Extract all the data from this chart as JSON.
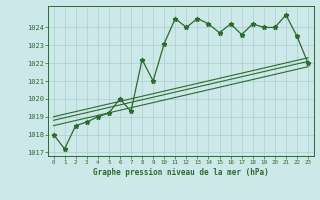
{
  "title": "Graphe pression niveau de la mer (hPa)",
  "background_color": "#cce8e8",
  "line_color": "#2d6a2d",
  "grid_color": "#aacfcf",
  "pressure_data": [
    1018.0,
    1017.2,
    1018.5,
    1018.7,
    1019.0,
    1019.2,
    1020.0,
    1019.3,
    1022.2,
    1021.0,
    1023.1,
    1024.5,
    1024.0,
    1024.5,
    1024.2,
    1023.7,
    1024.2,
    1023.6,
    1024.2,
    1024.0,
    1024.0,
    1024.7,
    1023.5,
    1022.0
  ],
  "trend_lines": [
    [
      1018.5,
      1021.8
    ],
    [
      1018.8,
      1022.1
    ],
    [
      1019.0,
      1022.3
    ]
  ],
  "ylim": [
    1016.8,
    1025.2
  ],
  "xlim": [
    -0.5,
    23.5
  ],
  "yticks": [
    1017,
    1018,
    1019,
    1020,
    1021,
    1022,
    1023,
    1024
  ],
  "xticks": [
    0,
    1,
    2,
    3,
    4,
    5,
    6,
    7,
    8,
    9,
    10,
    11,
    12,
    13,
    14,
    15,
    16,
    17,
    18,
    19,
    20,
    21,
    22,
    23
  ],
  "figsize": [
    3.2,
    2.0
  ],
  "dpi": 100
}
